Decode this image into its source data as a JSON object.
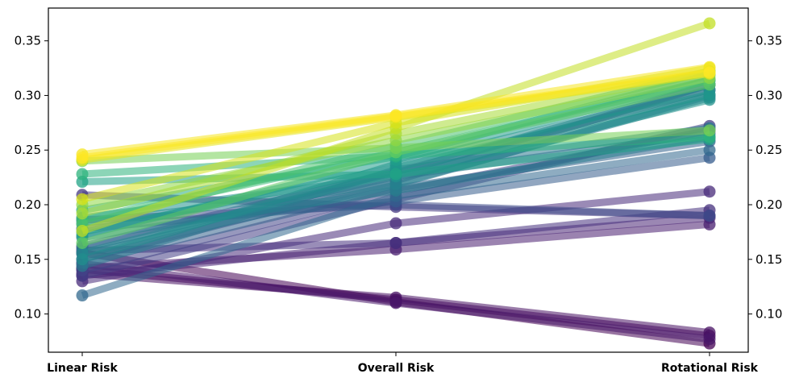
{
  "chart_data": {
    "type": "line",
    "categories": [
      "Linear Risk",
      "Overall Risk",
      "Rotational Risk"
    ],
    "ylim": [
      0.065,
      0.38
    ],
    "yticks": [
      0.1,
      0.15,
      0.2,
      0.25,
      0.3,
      0.35
    ],
    "ytick_labels": [
      "0.10",
      "0.15",
      "0.20",
      "0.25",
      "0.30",
      "0.35"
    ],
    "y_axis_both_sides": true,
    "grid": false,
    "legend": "none",
    "colormap": "viridis",
    "series": [
      {
        "values": [
          0.156,
          0.111,
          0.073
        ],
        "color": "#440154"
      },
      {
        "values": [
          0.141,
          0.113,
          0.08
        ],
        "color": "#46085c"
      },
      {
        "values": [
          0.137,
          0.115,
          0.083
        ],
        "color": "#471063"
      },
      {
        "values": [
          0.146,
          0.11,
          0.077
        ],
        "color": "#481769"
      },
      {
        "values": [
          0.142,
          0.159,
          0.182
        ],
        "color": "#481d6f"
      },
      {
        "values": [
          0.135,
          0.165,
          0.188
        ],
        "color": "#482475"
      },
      {
        "values": [
          0.13,
          0.183,
          0.212
        ],
        "color": "#472a7a"
      },
      {
        "values": [
          0.158,
          0.165,
          0.195
        ],
        "color": "#46307e"
      },
      {
        "values": [
          0.209,
          0.198,
          0.19
        ],
        "color": "#453882"
      },
      {
        "values": [
          0.135,
          0.205,
          0.272
        ],
        "color": "#433e85"
      },
      {
        "values": [
          0.14,
          0.212,
          0.268
        ],
        "color": "#414487"
      },
      {
        "values": [
          0.186,
          0.2,
          0.19
        ],
        "color": "#3e4a89"
      },
      {
        "values": [
          0.15,
          0.222,
          0.31
        ],
        "color": "#3c508b"
      },
      {
        "values": [
          0.162,
          0.23,
          0.305
        ],
        "color": "#39558c"
      },
      {
        "values": [
          0.178,
          0.203,
          0.243
        ],
        "color": "#365c8d"
      },
      {
        "values": [
          0.147,
          0.215,
          0.258
        ],
        "color": "#33628d"
      },
      {
        "values": [
          0.117,
          0.208,
          0.25
        ],
        "color": "#31688e"
      },
      {
        "values": [
          0.16,
          0.226,
          0.265
        ],
        "color": "#2e6d8e"
      },
      {
        "values": [
          0.155,
          0.218,
          0.3
        ],
        "color": "#2c728e"
      },
      {
        "values": [
          0.144,
          0.232,
          0.27
        ],
        "color": "#2a788e"
      },
      {
        "values": [
          0.17,
          0.213,
          0.262
        ],
        "color": "#287d8e"
      },
      {
        "values": [
          0.183,
          0.219,
          0.298
        ],
        "color": "#26828e"
      },
      {
        "values": [
          0.156,
          0.229,
          0.31
        ],
        "color": "#24878e"
      },
      {
        "values": [
          0.15,
          0.237,
          0.305
        ],
        "color": "#228d8d"
      },
      {
        "values": [
          0.188,
          0.226,
          0.296
        ],
        "color": "#21918c"
      },
      {
        "values": [
          0.175,
          0.234,
          0.301
        ],
        "color": "#1f978b"
      },
      {
        "values": [
          0.172,
          0.241,
          0.314
        ],
        "color": "#1f9d8a"
      },
      {
        "values": [
          0.221,
          0.228,
          0.26
        ],
        "color": "#20a386"
      },
      {
        "values": [
          0.195,
          0.244,
          0.319
        ],
        "color": "#25ab82"
      },
      {
        "values": [
          0.228,
          0.245,
          0.262
        ],
        "color": "#2eb37c"
      },
      {
        "values": [
          0.186,
          0.248,
          0.314
        ],
        "color": "#3bbb75"
      },
      {
        "values": [
          0.182,
          0.254,
          0.322
        ],
        "color": "#4ac16d"
      },
      {
        "values": [
          0.165,
          0.248,
          0.31
        ],
        "color": "#5ec962"
      },
      {
        "values": [
          0.24,
          0.252,
          0.268
        ],
        "color": "#75d054"
      },
      {
        "values": [
          0.2,
          0.259,
          0.316
        ],
        "color": "#8fd744"
      },
      {
        "values": [
          0.192,
          0.265,
          0.322
        ],
        "color": "#a8db34"
      },
      {
        "values": [
          0.176,
          0.27,
          0.366
        ],
        "color": "#c2df23"
      },
      {
        "values": [
          0.205,
          0.275,
          0.325
        ],
        "color": "#d5e21a"
      },
      {
        "values": [
          0.241,
          0.28,
          0.32
        ],
        "color": "#e5e419"
      },
      {
        "values": [
          0.246,
          0.282,
          0.326
        ],
        "color": "#f5e61f"
      },
      {
        "values": [
          0.243,
          0.281,
          0.321
        ],
        "color": "#fde725"
      }
    ]
  }
}
